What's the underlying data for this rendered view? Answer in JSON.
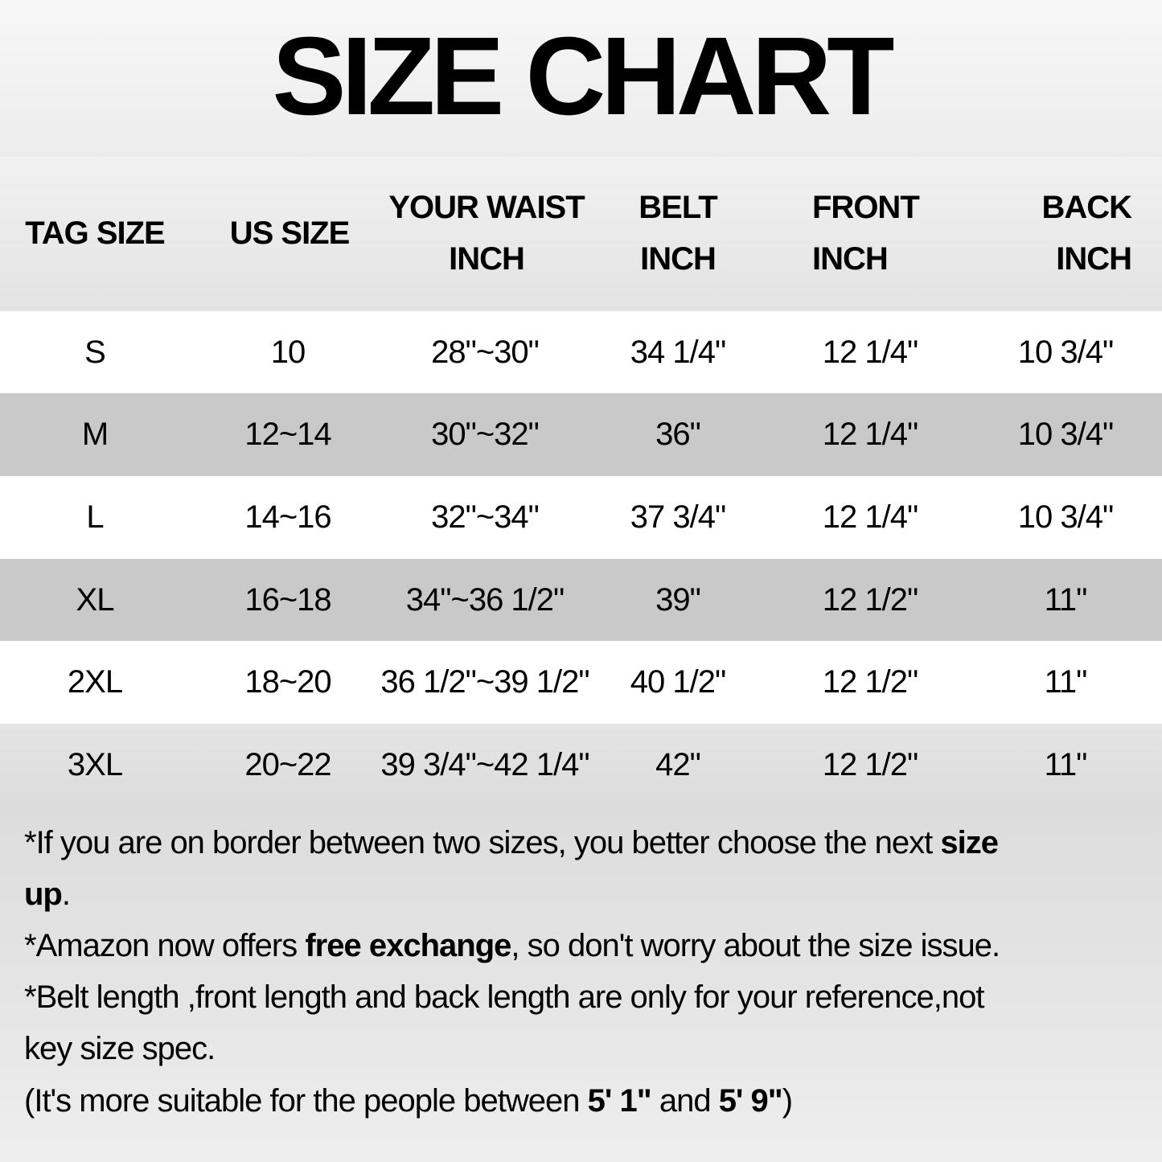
{
  "title": "SIZE CHART",
  "table": {
    "headers": [
      {
        "line1": "TAG SIZE",
        "line2": ""
      },
      {
        "line1": "US SIZE",
        "line2": ""
      },
      {
        "line1": "YOUR WAIST",
        "line2": "INCH"
      },
      {
        "line1": "BELT",
        "line2": "INCH"
      },
      {
        "line1": "FRONT",
        "line2": "INCH"
      },
      {
        "line1": "BACK",
        "line2": "INCH"
      }
    ],
    "rows": [
      [
        "S",
        "10",
        "28\"~30\"",
        "34 1/4\"",
        "12 1/4\"",
        "10 3/4\""
      ],
      [
        "M",
        "12~14",
        "30\"~32\"",
        "36\"",
        "12 1/4\"",
        "10 3/4\""
      ],
      [
        "L",
        "14~16",
        "32\"~34\"",
        "37 3/4\"",
        "12 1/4\"",
        "10 3/4\""
      ],
      [
        "XL",
        "16~18",
        "34\"~36 1/2\"",
        "39\"",
        "12 1/2\"",
        "11\""
      ],
      [
        "2XL",
        "18~20",
        "36 1/2\"~39 1/2\"",
        "40 1/2\"",
        "12 1/2\"",
        "11\""
      ],
      [
        "3XL",
        "20~22",
        "39 3/4\"~42 1/4\"",
        "42\"",
        "12 1/2\"",
        "11\""
      ]
    ]
  },
  "notes": {
    "n1a": "*If you are on border between two sizes, you better choose the next ",
    "n1b": "size",
    "n1c": "up",
    "n1d": ".",
    "n2a": "*Amazon now offers ",
    "n2b": "free exchange",
    "n2c": ", so don't worry about the size issue.",
    "n3a": "*Belt length ,front length and back length are only for your reference,not",
    "n3b": "key size spec.",
    "n4a": "(It's more suitable for the people between ",
    "n4b": "5' 1\"",
    "n4c": " and ",
    "n4d": "5' 9\"",
    "n4e": ")"
  },
  "colors": {
    "row_white": "#ffffff",
    "row_gray": "#c9c9c9"
  }
}
